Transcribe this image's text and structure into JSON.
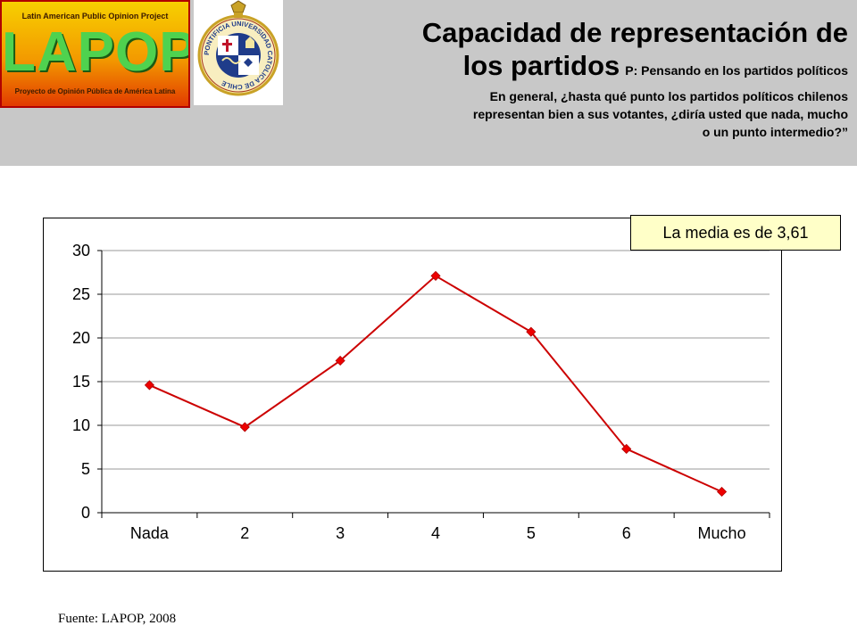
{
  "header": {
    "logo": {
      "top_text": "Latin American Public Opinion Project",
      "word": "LAPOP",
      "bottom_text": "Proyecto de Opinión Pública de América Latina"
    },
    "seal": {
      "ring_text": "PONTIFICIA UNIVERSIDAD CATOLICA DE CHILE"
    },
    "title_line1": "Capacidad de representación de",
    "title_line2": "los partidos",
    "question_lines": [
      "P: Pensando en los partidos políticos",
      "En general, ¿hasta qué punto los partidos políticos chilenos",
      "representan bien a sus votantes, ¿diría usted que nada, mucho",
      "o un punto intermedio?”"
    ]
  },
  "callout": {
    "text": "La media es de 3,61",
    "bg_color": "#ffffc8"
  },
  "source": "Fuente: LAPOP, 2008",
  "chart_data": {
    "type": "line",
    "categories": [
      "Nada",
      "2",
      "3",
      "4",
      "5",
      "6",
      "Mucho"
    ],
    "values": [
      14.6,
      9.8,
      17.4,
      27.1,
      20.7,
      7.3,
      2.4
    ],
    "ylim": [
      0,
      30
    ],
    "yticks": [
      0,
      5,
      10,
      15,
      20,
      25,
      30
    ],
    "grid": true,
    "line_color": "#cc0000",
    "marker_color": "#ee0000"
  }
}
